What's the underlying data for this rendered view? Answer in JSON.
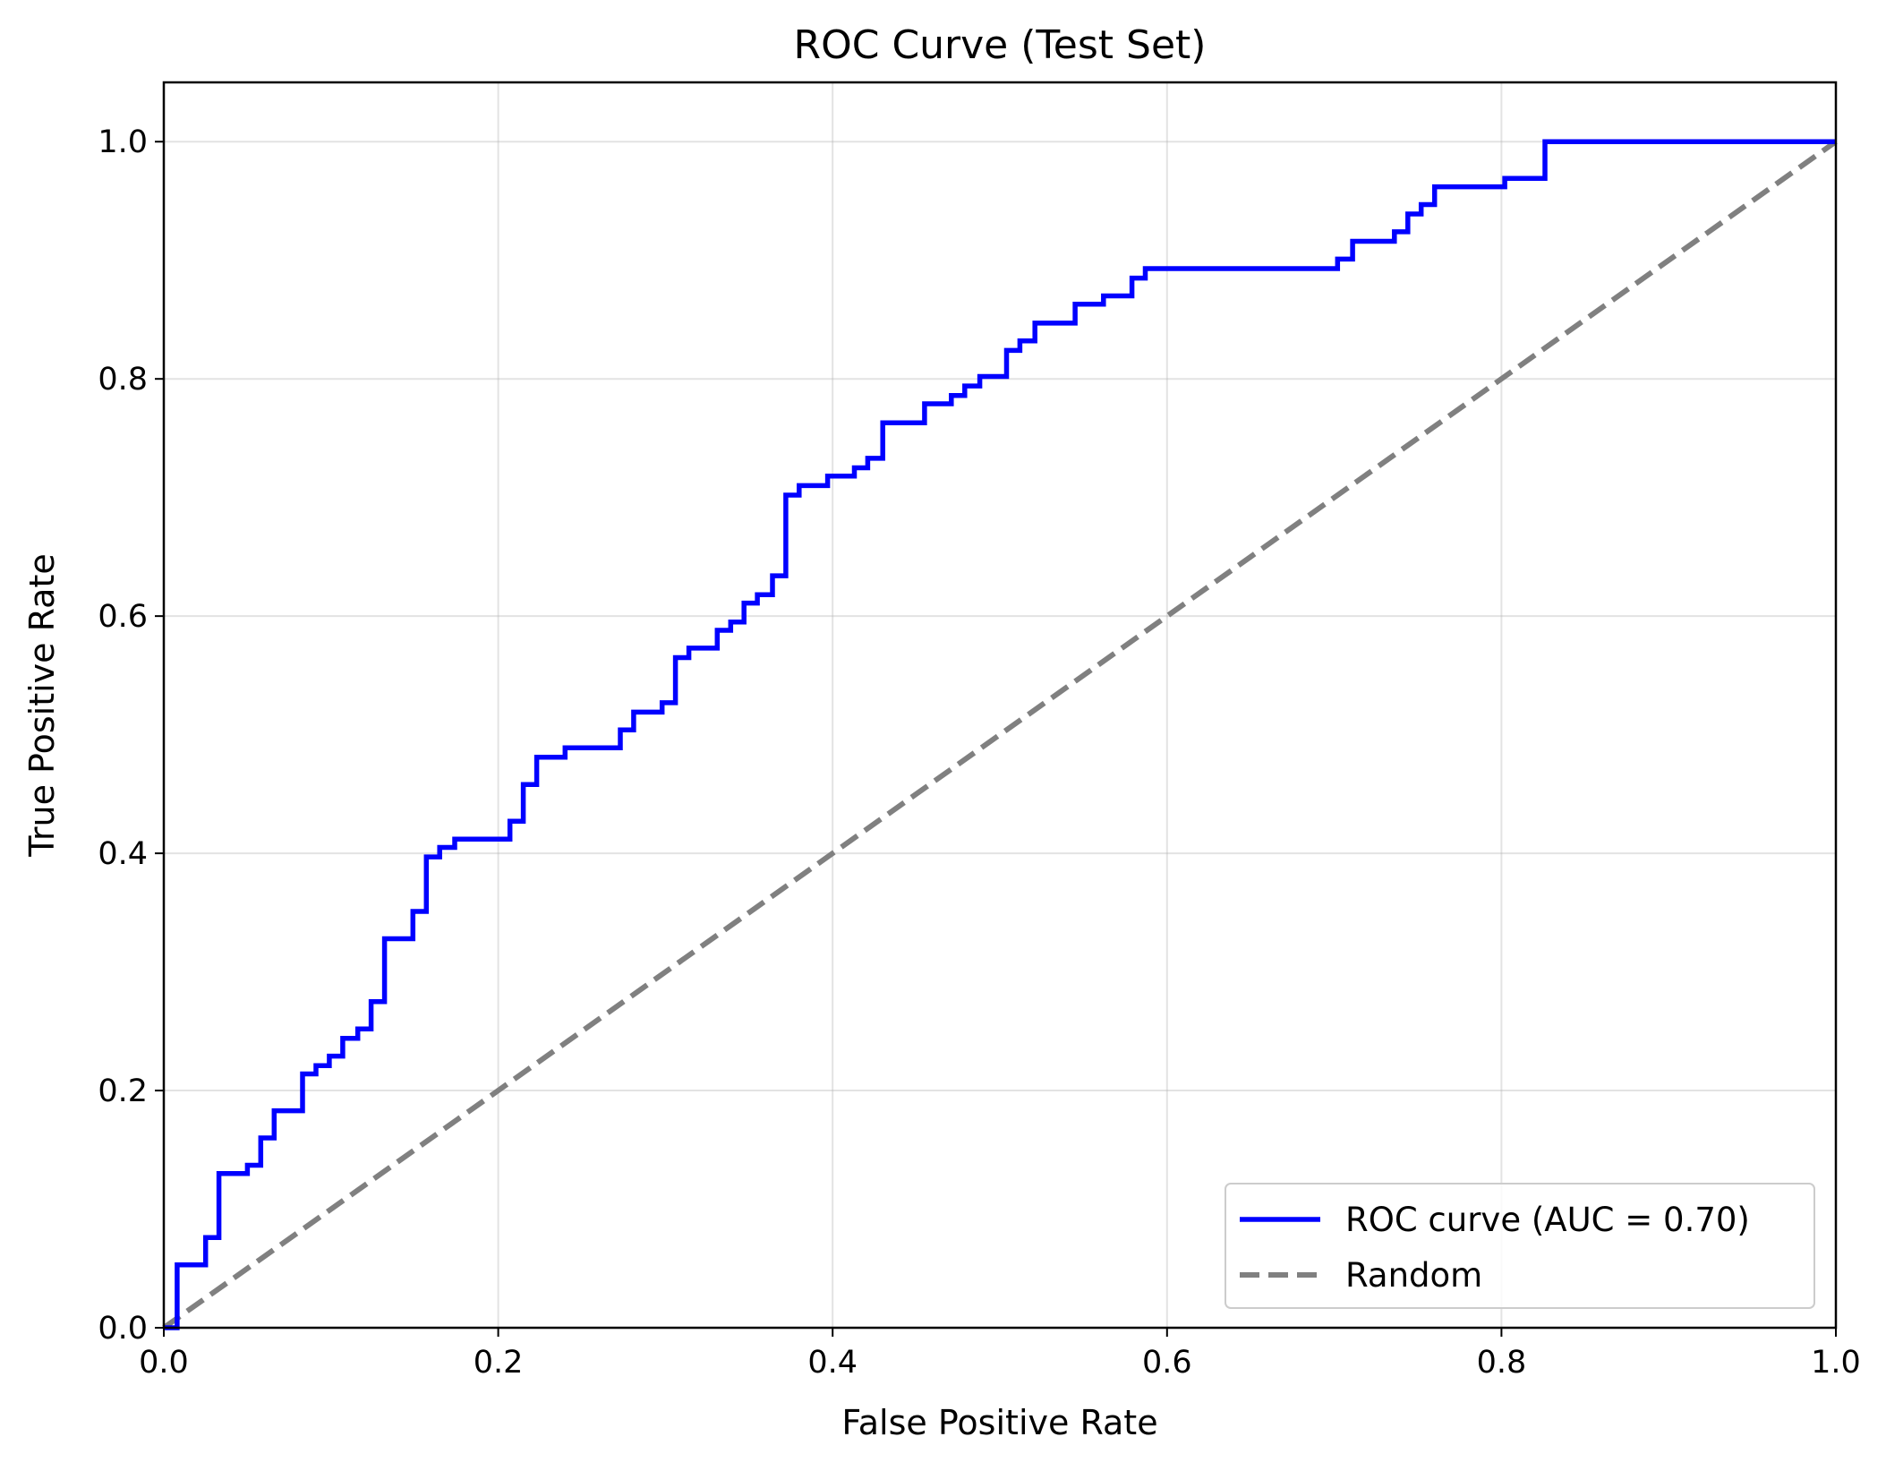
{
  "chart_data": {
    "type": "line",
    "title": "ROC Curve (Test Set)",
    "xlabel": "False Positive Rate",
    "ylabel": "True Positive Rate",
    "xlim": [
      0.0,
      1.0
    ],
    "ylim": [
      0.0,
      1.05
    ],
    "xticks": [
      "0.0",
      "0.2",
      "0.4",
      "0.6",
      "0.8",
      "1.0"
    ],
    "yticks": [
      "0.0",
      "0.2",
      "0.4",
      "0.6",
      "0.8",
      "1.0"
    ],
    "xtick_values": [
      0.0,
      0.2,
      0.4,
      0.6,
      0.8,
      1.0
    ],
    "ytick_values": [
      0.0,
      0.2,
      0.4,
      0.6,
      0.8,
      1.0
    ],
    "grid": true,
    "legend_position": "lower-right",
    "series": [
      {
        "name": "ROC curve (AUC = 0.70)",
        "style": "solid",
        "color": "#0000ff",
        "x": [
          0.0,
          0.008,
          0.008,
          0.025,
          0.025,
          0.033,
          0.033,
          0.05,
          0.05,
          0.058,
          0.058,
          0.066,
          0.066,
          0.083,
          0.083,
          0.091,
          0.091,
          0.099,
          0.099,
          0.107,
          0.107,
          0.116,
          0.116,
          0.124,
          0.124,
          0.132,
          0.132,
          0.149,
          0.149,
          0.157,
          0.157,
          0.165,
          0.165,
          0.174,
          0.174,
          0.207,
          0.207,
          0.215,
          0.215,
          0.223,
          0.223,
          0.24,
          0.24,
          0.273,
          0.273,
          0.281,
          0.281,
          0.298,
          0.298,
          0.306,
          0.306,
          0.314,
          0.314,
          0.331,
          0.331,
          0.339,
          0.339,
          0.347,
          0.347,
          0.355,
          0.355,
          0.364,
          0.364,
          0.372,
          0.372,
          0.38,
          0.38,
          0.397,
          0.397,
          0.413,
          0.413,
          0.421,
          0.421,
          0.43,
          0.43,
          0.455,
          0.455,
          0.471,
          0.471,
          0.479,
          0.479,
          0.488,
          0.488,
          0.504,
          0.504,
          0.512,
          0.512,
          0.521,
          0.521,
          0.545,
          0.545,
          0.562,
          0.562,
          0.579,
          0.579,
          0.587,
          0.587,
          0.702,
          0.702,
          0.711,
          0.711,
          0.736,
          0.736,
          0.744,
          0.744,
          0.752,
          0.752,
          0.76,
          0.76,
          0.802,
          0.802,
          0.826,
          0.826,
          1.0
        ],
        "y": [
          0.0,
          0.0,
          0.053,
          0.053,
          0.076,
          0.076,
          0.13,
          0.13,
          0.137,
          0.137,
          0.16,
          0.16,
          0.183,
          0.183,
          0.214,
          0.214,
          0.221,
          0.221,
          0.229,
          0.229,
          0.244,
          0.244,
          0.252,
          0.252,
          0.275,
          0.275,
          0.328,
          0.328,
          0.351,
          0.351,
          0.397,
          0.397,
          0.405,
          0.405,
          0.412,
          0.412,
          0.427,
          0.427,
          0.458,
          0.458,
          0.481,
          0.481,
          0.489,
          0.489,
          0.504,
          0.504,
          0.519,
          0.519,
          0.527,
          0.527,
          0.565,
          0.565,
          0.573,
          0.573,
          0.588,
          0.588,
          0.595,
          0.595,
          0.611,
          0.611,
          0.618,
          0.618,
          0.634,
          0.634,
          0.702,
          0.702,
          0.71,
          0.71,
          0.718,
          0.718,
          0.725,
          0.725,
          0.733,
          0.733,
          0.763,
          0.763,
          0.779,
          0.779,
          0.786,
          0.786,
          0.794,
          0.794,
          0.802,
          0.802,
          0.824,
          0.824,
          0.832,
          0.832,
          0.847,
          0.847,
          0.863,
          0.863,
          0.87,
          0.87,
          0.885,
          0.885,
          0.893,
          0.893,
          0.901,
          0.901,
          0.916,
          0.916,
          0.924,
          0.924,
          0.939,
          0.939,
          0.947,
          0.947,
          0.962,
          0.962,
          0.969,
          0.969,
          1.0,
          1.0
        ]
      },
      {
        "name": "Random",
        "style": "dashed",
        "color": "#808080",
        "x": [
          0.0,
          1.0
        ],
        "y": [
          0.0,
          1.0
        ]
      }
    ]
  }
}
